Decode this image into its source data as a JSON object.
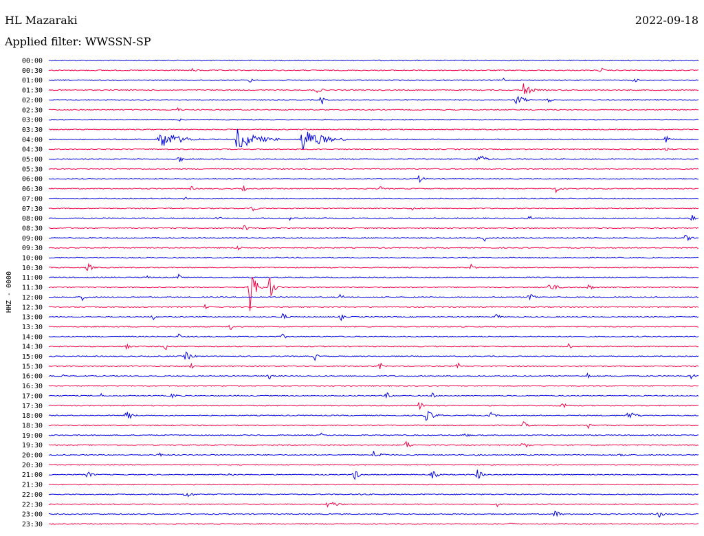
{
  "header": {
    "station": "HL Mazaraki",
    "date": "2022-09-18",
    "filter": "Applied filter: WWSSN-SP"
  },
  "chart_data": {
    "type": "line",
    "title": "HL Mazaraki",
    "ylabel": "HHZ - 0000",
    "colors": {
      "even": "#0000dd",
      "odd": "#ee0044"
    },
    "rows": [
      "00:00",
      "00:30",
      "01:00",
      "01:30",
      "02:00",
      "02:30",
      "03:00",
      "03:30",
      "04:00",
      "04:30",
      "05:00",
      "05:30",
      "06:00",
      "06:30",
      "07:00",
      "07:30",
      "08:00",
      "08:30",
      "09:00",
      "09:30",
      "10:00",
      "10:30",
      "11:00",
      "11:30",
      "12:00",
      "12:30",
      "13:00",
      "13:30",
      "14:00",
      "14:30",
      "15:00",
      "15:30",
      "16:00",
      "16:30",
      "17:00",
      "17:30",
      "18:00",
      "18:30",
      "19:00",
      "19:30",
      "20:00",
      "20:30",
      "21:00",
      "21:30",
      "22:00",
      "22:30",
      "23:00",
      "23:30"
    ],
    "events": [
      {
        "row": 1,
        "t": 0.22,
        "amp": 3,
        "dur": 0.03
      },
      {
        "row": 1,
        "t": 0.85,
        "amp": 6,
        "dur": 0.01
      },
      {
        "row": 2,
        "t": 0.31,
        "amp": 5,
        "dur": 0.01
      },
      {
        "row": 2,
        "t": 0.7,
        "amp": 4,
        "dur": 0.01
      },
      {
        "row": 2,
        "t": 0.9,
        "amp": 4,
        "dur": 0.02
      },
      {
        "row": 3,
        "t": 0.41,
        "amp": 5,
        "dur": 0.03
      },
      {
        "row": 3,
        "t": 0.73,
        "amp": 12,
        "dur": 0.03
      },
      {
        "row": 4,
        "t": 0.42,
        "amp": 10,
        "dur": 0.01
      },
      {
        "row": 4,
        "t": 0.72,
        "amp": 9,
        "dur": 0.03
      },
      {
        "row": 4,
        "t": 0.77,
        "amp": 6,
        "dur": 0.01
      },
      {
        "row": 5,
        "t": 0.2,
        "amp": 5,
        "dur": 0.01
      },
      {
        "row": 6,
        "t": 0.2,
        "amp": 4,
        "dur": 0.01
      },
      {
        "row": 8,
        "t": 0.17,
        "amp": 14,
        "dur": 0.08
      },
      {
        "row": 8,
        "t": 0.29,
        "amp": 16,
        "dur": 0.08
      },
      {
        "row": 8,
        "t": 0.39,
        "amp": 18,
        "dur": 0.08
      },
      {
        "row": 8,
        "t": 0.95,
        "amp": 8,
        "dur": 0.01
      },
      {
        "row": 9,
        "t": 0.95,
        "amp": 5,
        "dur": 0.01
      },
      {
        "row": 10,
        "t": 0.2,
        "amp": 6,
        "dur": 0.02
      },
      {
        "row": 10,
        "t": 0.66,
        "amp": 9,
        "dur": 0.03
      },
      {
        "row": 12,
        "t": 0.57,
        "amp": 6,
        "dur": 0.02
      },
      {
        "row": 13,
        "t": 0.22,
        "amp": 4,
        "dur": 0.01
      },
      {
        "row": 13,
        "t": 0.3,
        "amp": 5,
        "dur": 0.01
      },
      {
        "row": 13,
        "t": 0.51,
        "amp": 5,
        "dur": 0.01
      },
      {
        "row": 13,
        "t": 0.78,
        "amp": 6,
        "dur": 0.02
      },
      {
        "row": 14,
        "t": 0.21,
        "amp": 4,
        "dur": 0.01
      },
      {
        "row": 15,
        "t": 0.31,
        "amp": 7,
        "dur": 0.02
      },
      {
        "row": 15,
        "t": 0.56,
        "amp": 4,
        "dur": 0.01
      },
      {
        "row": 16,
        "t": 0.26,
        "amp": 6,
        "dur": 0.01
      },
      {
        "row": 16,
        "t": 0.37,
        "amp": 4,
        "dur": 0.01
      },
      {
        "row": 16,
        "t": 0.74,
        "amp": 5,
        "dur": 0.01
      },
      {
        "row": 16,
        "t": 0.99,
        "amp": 7,
        "dur": 0.01
      },
      {
        "row": 17,
        "t": 0.3,
        "amp": 6,
        "dur": 0.02
      },
      {
        "row": 18,
        "t": 0.67,
        "amp": 6,
        "dur": 0.01
      },
      {
        "row": 18,
        "t": 0.98,
        "amp": 5,
        "dur": 0.03
      },
      {
        "row": 19,
        "t": 0.29,
        "amp": 5,
        "dur": 0.02
      },
      {
        "row": 21,
        "t": 0.06,
        "amp": 7,
        "dur": 0.02
      },
      {
        "row": 21,
        "t": 0.65,
        "amp": 5,
        "dur": 0.02
      },
      {
        "row": 22,
        "t": 0.15,
        "amp": 6,
        "dur": 0.01
      },
      {
        "row": 22,
        "t": 0.2,
        "amp": 5,
        "dur": 0.01
      },
      {
        "row": 22,
        "t": 0.47,
        "amp": 5,
        "dur": 0.01
      },
      {
        "row": 23,
        "t": 0.31,
        "amp": 40,
        "dur": 0.02
      },
      {
        "row": 23,
        "t": 0.34,
        "amp": 18,
        "dur": 0.02
      },
      {
        "row": 23,
        "t": 0.77,
        "amp": 6,
        "dur": 0.04
      },
      {
        "row": 23,
        "t": 0.83,
        "amp": 6,
        "dur": 0.02
      },
      {
        "row": 24,
        "t": 0.05,
        "amp": 6,
        "dur": 0.02
      },
      {
        "row": 24,
        "t": 0.45,
        "amp": 7,
        "dur": 0.01
      },
      {
        "row": 24,
        "t": 0.74,
        "amp": 8,
        "dur": 0.02
      },
      {
        "row": 25,
        "t": 0.24,
        "amp": 5,
        "dur": 0.01
      },
      {
        "row": 26,
        "t": 0.16,
        "amp": 6,
        "dur": 0.01
      },
      {
        "row": 26,
        "t": 0.36,
        "amp": 6,
        "dur": 0.02
      },
      {
        "row": 26,
        "t": 0.45,
        "amp": 6,
        "dur": 0.01
      },
      {
        "row": 26,
        "t": 0.69,
        "amp": 7,
        "dur": 0.01
      },
      {
        "row": 27,
        "t": 0.28,
        "amp": 7,
        "dur": 0.01
      },
      {
        "row": 28,
        "t": 0.2,
        "amp": 5,
        "dur": 0.01
      },
      {
        "row": 28,
        "t": 0.36,
        "amp": 4,
        "dur": 0.02
      },
      {
        "row": 29,
        "t": 0.12,
        "amp": 8,
        "dur": 0.01
      },
      {
        "row": 29,
        "t": 0.18,
        "amp": 6,
        "dur": 0.01
      },
      {
        "row": 29,
        "t": 0.8,
        "amp": 6,
        "dur": 0.01
      },
      {
        "row": 30,
        "t": 0.21,
        "amp": 7,
        "dur": 0.03
      },
      {
        "row": 30,
        "t": 0.41,
        "amp": 7,
        "dur": 0.01
      },
      {
        "row": 31,
        "t": 0.13,
        "amp": 4,
        "dur": 0.01
      },
      {
        "row": 31,
        "t": 0.22,
        "amp": 5,
        "dur": 0.01
      },
      {
        "row": 31,
        "t": 0.51,
        "amp": 6,
        "dur": 0.01
      },
      {
        "row": 31,
        "t": 0.63,
        "amp": 7,
        "dur": 0.01
      },
      {
        "row": 32,
        "t": 0.02,
        "amp": 4,
        "dur": 0.01
      },
      {
        "row": 32,
        "t": 0.34,
        "amp": 6,
        "dur": 0.01
      },
      {
        "row": 32,
        "t": 0.83,
        "amp": 6,
        "dur": 0.01
      },
      {
        "row": 32,
        "t": 0.99,
        "amp": 7,
        "dur": 0.01
      },
      {
        "row": 34,
        "t": 0.08,
        "amp": 4,
        "dur": 0.01
      },
      {
        "row": 34,
        "t": 0.19,
        "amp": 5,
        "dur": 0.02
      },
      {
        "row": 34,
        "t": 0.52,
        "amp": 5,
        "dur": 0.02
      },
      {
        "row": 34,
        "t": 0.59,
        "amp": 6,
        "dur": 0.01
      },
      {
        "row": 35,
        "t": 0.57,
        "amp": 7,
        "dur": 0.02
      },
      {
        "row": 35,
        "t": 0.79,
        "amp": 5,
        "dur": 0.03
      },
      {
        "row": 36,
        "t": 0.12,
        "amp": 9,
        "dur": 0.02
      },
      {
        "row": 36,
        "t": 0.58,
        "amp": 8,
        "dur": 0.04
      },
      {
        "row": 36,
        "t": 0.68,
        "amp": 5,
        "dur": 0.02
      },
      {
        "row": 36,
        "t": 0.89,
        "amp": 7,
        "dur": 0.04
      },
      {
        "row": 37,
        "t": 0.73,
        "amp": 6,
        "dur": 0.02
      },
      {
        "row": 37,
        "t": 0.83,
        "amp": 6,
        "dur": 0.01
      },
      {
        "row": 38,
        "t": 0.42,
        "amp": 4,
        "dur": 0.01
      },
      {
        "row": 38,
        "t": 0.64,
        "amp": 4,
        "dur": 0.02
      },
      {
        "row": 39,
        "t": 0.55,
        "amp": 7,
        "dur": 0.02
      },
      {
        "row": 39,
        "t": 0.73,
        "amp": 7,
        "dur": 0.02
      },
      {
        "row": 40,
        "t": 0.17,
        "amp": 5,
        "dur": 0.01
      },
      {
        "row": 40,
        "t": 0.5,
        "amp": 6,
        "dur": 0.04
      },
      {
        "row": 40,
        "t": 0.66,
        "amp": 4,
        "dur": 0.01
      },
      {
        "row": 40,
        "t": 0.88,
        "amp": 5,
        "dur": 0.02
      },
      {
        "row": 42,
        "t": 0.06,
        "amp": 6,
        "dur": 0.02
      },
      {
        "row": 42,
        "t": 0.28,
        "amp": 5,
        "dur": 0.01
      },
      {
        "row": 42,
        "t": 0.47,
        "amp": 9,
        "dur": 0.02
      },
      {
        "row": 42,
        "t": 0.59,
        "amp": 6,
        "dur": 0.03
      },
      {
        "row": 42,
        "t": 0.66,
        "amp": 9,
        "dur": 0.02
      },
      {
        "row": 44,
        "t": 0.21,
        "amp": 6,
        "dur": 0.03
      },
      {
        "row": 44,
        "t": 0.48,
        "amp": 4,
        "dur": 0.01
      },
      {
        "row": 45,
        "t": 0.43,
        "amp": 6,
        "dur": 0.04
      },
      {
        "row": 45,
        "t": 0.69,
        "amp": 4,
        "dur": 0.01
      },
      {
        "row": 46,
        "t": 0.78,
        "amp": 7,
        "dur": 0.02
      },
      {
        "row": 46,
        "t": 0.94,
        "amp": 6,
        "dur": 0.02
      },
      {
        "row": 47,
        "t": 0.71,
        "amp": 7,
        "dur": 0.01
      }
    ]
  }
}
